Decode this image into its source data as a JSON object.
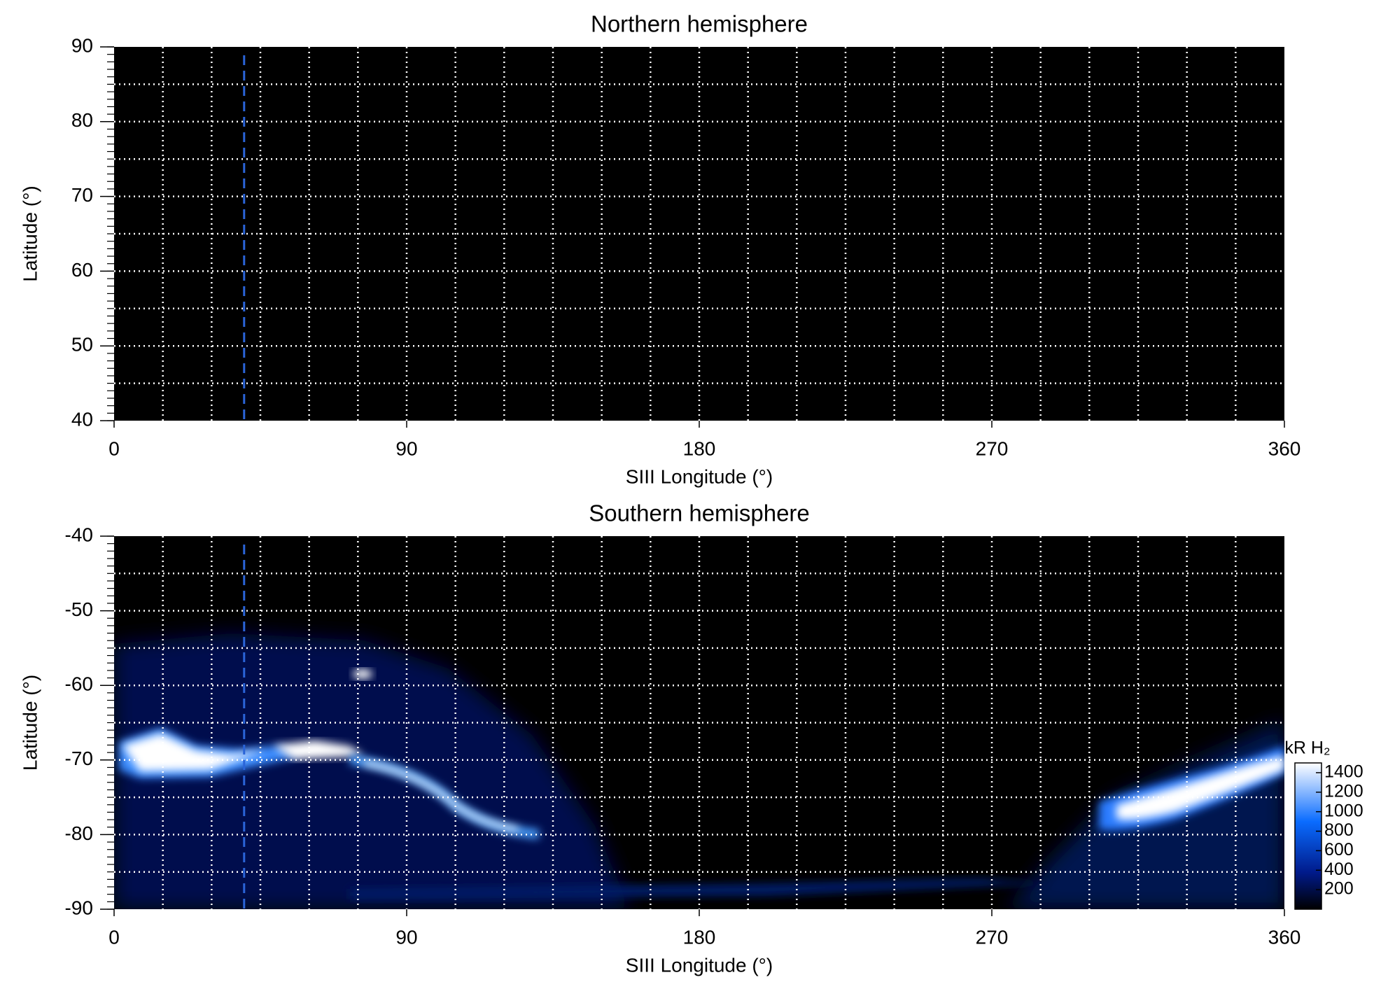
{
  "chart_data": [
    {
      "type": "map",
      "title": "Northern hemisphere",
      "xlabel": "SIII Longitude (°)",
      "ylabel": "Latitude (°)",
      "xlim": [
        0,
        360
      ],
      "xticks": [
        0,
        90,
        180,
        270,
        360
      ],
      "ylim": [
        40,
        90
      ],
      "yticks": [
        40,
        50,
        60,
        70,
        80,
        90
      ],
      "grid": true,
      "grid_step": [
        15,
        5
      ],
      "yminor_step": 1,
      "background": "#000000",
      "grid_color": "#ffffff",
      "vline": {
        "x": 40,
        "color": "#2a64d8"
      }
    },
    {
      "type": "map",
      "title": "Southern hemisphere",
      "xlabel": "SIII Longitude (°)",
      "ylabel": "Latitude (°)",
      "xlim": [
        0,
        360
      ],
      "xticks": [
        0,
        90,
        180,
        270,
        360
      ],
      "ylim": [
        -90,
        -40
      ],
      "yticks": [
        -90,
        -80,
        -70,
        -60,
        -50,
        -40
      ],
      "grid": true,
      "grid_step": [
        15,
        5
      ],
      "yminor_step": 1,
      "background": "#000000",
      "grid_color": "#ffffff",
      "vline": {
        "x": 40,
        "color": "#2a64d8"
      },
      "colorbar": {
        "label": "kR H₂",
        "lim": [
          0,
          1500
        ],
        "ticks": [
          200,
          400,
          600,
          800,
          1000,
          1200,
          1400
        ]
      }
    }
  ]
}
